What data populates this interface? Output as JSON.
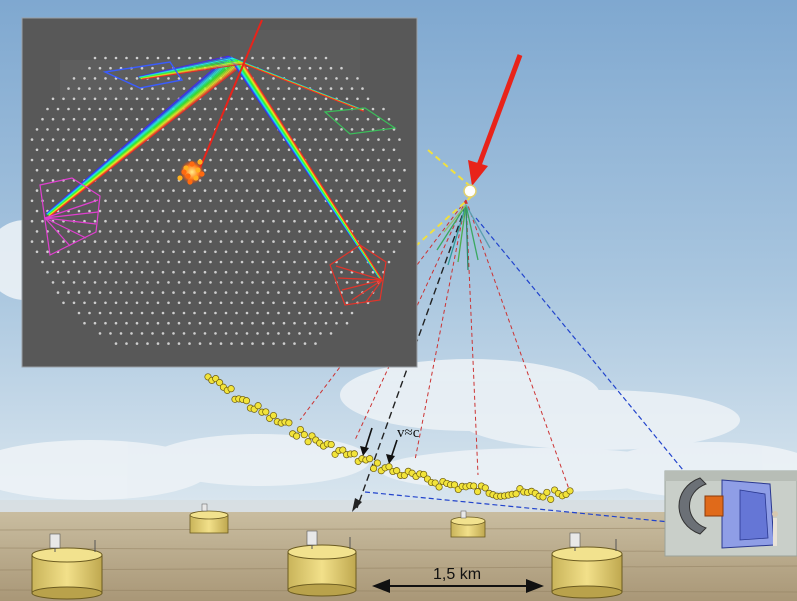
{
  "labels": {
    "distance": "1,5 km",
    "speed": "v≈c"
  },
  "colors": {
    "sky_top": "#7fa8d0",
    "sky_bottom": "#d9e6ef",
    "ground": "#b8a683",
    "inset_bg": "#585858",
    "primary_ray": "#e8231a",
    "shower_dots": "#f2e43a",
    "tank": "#e9d77a",
    "fluorescence_lines": "#2244cc",
    "cherenkov_lines": "#cc3333"
  },
  "icons": {
    "detector_tank": "tank-icon",
    "telescope": "telescope-icon",
    "double_arrow": "double-arrow-icon"
  }
}
